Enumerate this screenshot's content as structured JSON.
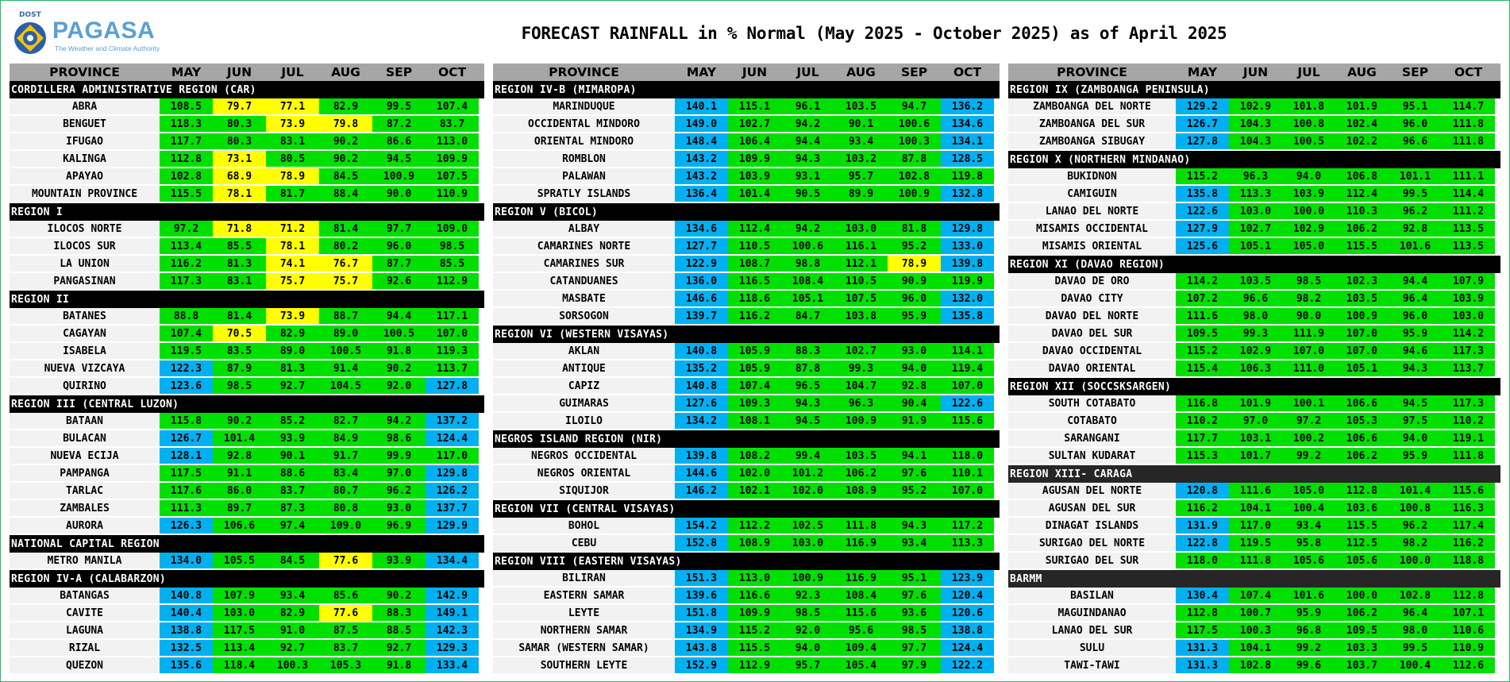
{
  "header": {
    "dost_label": "DOST",
    "logo_name": "PAGASA",
    "logo_tagline": "The Weather and Climate Authority",
    "title": "FORECAST RAINFALL in % Normal (May 2025 - October 2025) as of April 2025"
  },
  "legend_colors": {
    "below_normal": "#ffff00",
    "near_normal": "#00e000",
    "above_normal": "#00b0f0"
  },
  "columns": [
    "PROVINCE",
    "MAY",
    "JUN",
    "JUL",
    "AUG",
    "SEP",
    "OCT"
  ],
  "panels": [
    {
      "regions": [
        {
          "name": "CORDILLERA ADMINISTRATIVE REGION (CAR)",
          "rows": [
            [
              "ABRA",
              "108.5",
              "79.7",
              "77.1",
              "82.9",
              "99.5",
              "107.4"
            ],
            [
              "BENGUET",
              "118.3",
              "80.3",
              "73.9",
              "79.8",
              "87.2",
              "83.7"
            ],
            [
              "IFUGAO",
              "117.7",
              "80.3",
              "83.1",
              "90.2",
              "86.6",
              "113.0"
            ],
            [
              "KALINGA",
              "112.8",
              "73.1",
              "80.5",
              "90.2",
              "94.5",
              "109.9"
            ],
            [
              "APAYAO",
              "102.8",
              "68.9",
              "78.9",
              "84.5",
              "100.9",
              "107.5"
            ],
            [
              "MOUNTAIN PROVINCE",
              "115.5",
              "78.1",
              "81.7",
              "88.4",
              "90.0",
              "110.9"
            ]
          ]
        },
        {
          "name": "REGION I",
          "rows": [
            [
              "ILOCOS NORTE",
              "97.2",
              "71.8",
              "71.2",
              "81.4",
              "97.7",
              "109.0"
            ],
            [
              "ILOCOS SUR",
              "113.4",
              "85.5",
              "78.1",
              "80.2",
              "96.0",
              "98.5"
            ],
            [
              "LA UNION",
              "116.2",
              "81.3",
              "74.1",
              "76.7",
              "87.7",
              "85.5"
            ],
            [
              "PANGASINAN",
              "117.3",
              "83.1",
              "75.7",
              "75.7",
              "92.6",
              "112.9"
            ]
          ]
        },
        {
          "name": "REGION II",
          "rows": [
            [
              "BATANES",
              "88.8",
              "81.4",
              "73.9",
              "88.7",
              "94.4",
              "117.1"
            ],
            [
              "CAGAYAN",
              "107.4",
              "70.5",
              "82.9",
              "89.0",
              "100.5",
              "107.0"
            ],
            [
              "ISABELA",
              "119.5",
              "83.5",
              "89.0",
              "100.5",
              "91.8",
              "119.3"
            ],
            [
              "NUEVA VIZCAYA",
              "122.3",
              "87.9",
              "81.3",
              "91.4",
              "90.2",
              "113.7"
            ],
            [
              "QUIRINO",
              "123.6",
              "98.5",
              "92.7",
              "104.5",
              "92.0",
              "127.8"
            ]
          ]
        },
        {
          "name": "REGION III (CENTRAL LUZON)",
          "rows": [
            [
              "BATAAN",
              "115.8",
              "90.2",
              "85.2",
              "82.7",
              "94.2",
              "137.2"
            ],
            [
              "BULACAN",
              "126.7",
              "101.4",
              "93.9",
              "84.9",
              "98.6",
              "124.4"
            ],
            [
              "NUEVA ECIJA",
              "128.1",
              "92.8",
              "90.1",
              "91.7",
              "99.9",
              "117.0"
            ],
            [
              "PAMPANGA",
              "117.5",
              "91.1",
              "88.6",
              "83.4",
              "97.0",
              "129.8"
            ],
            [
              "TARLAC",
              "117.6",
              "86.0",
              "83.7",
              "80.7",
              "96.2",
              "126.2"
            ],
            [
              "ZAMBALES",
              "111.3",
              "89.7",
              "87.3",
              "80.8",
              "93.0",
              "137.7"
            ],
            [
              "AURORA",
              "126.3",
              "106.6",
              "97.4",
              "109.0",
              "96.9",
              "129.9"
            ]
          ]
        },
        {
          "name": "NATIONAL CAPITAL REGION",
          "rows": [
            [
              "METRO MANILA",
              "134.0",
              "105.5",
              "84.5",
              "77.6",
              "93.9",
              "134.4"
            ]
          ]
        },
        {
          "name": "REGION IV-A (CALABARZON)",
          "rows": [
            [
              "BATANGAS",
              "140.8",
              "107.9",
              "93.4",
              "85.6",
              "90.2",
              "142.9"
            ],
            [
              "CAVITE",
              "140.4",
              "103.0",
              "82.9",
              "77.6",
              "88.3",
              "149.1"
            ],
            [
              "LAGUNA",
              "138.8",
              "117.5",
              "91.0",
              "87.5",
              "88.5",
              "142.3"
            ],
            [
              "RIZAL",
              "132.5",
              "113.4",
              "92.7",
              "83.7",
              "92.7",
              "129.3"
            ],
            [
              "QUEZON",
              "135.6",
              "118.4",
              "100.3",
              "105.3",
              "91.8",
              "133.4"
            ]
          ]
        }
      ]
    },
    {
      "regions": [
        {
          "name": "REGION IV-B (MIMAROPA)",
          "rows": [
            [
              "MARINDUQUE",
              "140.1",
              "115.1",
              "96.1",
              "103.5",
              "94.7",
              "136.2"
            ],
            [
              "OCCIDENTAL MINDORO",
              "149.0",
              "102.7",
              "94.2",
              "90.1",
              "100.6",
              "134.6"
            ],
            [
              "ORIENTAL MINDORO",
              "148.4",
              "106.4",
              "94.4",
              "93.4",
              "100.3",
              "134.1"
            ],
            [
              "ROMBLON",
              "143.2",
              "109.9",
              "94.3",
              "103.2",
              "87.8",
              "128.5"
            ],
            [
              "PALAWAN",
              "143.2",
              "103.9",
              "93.1",
              "95.7",
              "102.8",
              "119.8"
            ],
            [
              "SPRATLY ISLANDS",
              "136.4",
              "101.4",
              "90.5",
              "89.9",
              "100.9",
              "132.8"
            ]
          ]
        },
        {
          "name": "REGION V (BICOL)",
          "rows": [
            [
              "ALBAY",
              "134.6",
              "112.4",
              "94.2",
              "103.0",
              "81.8",
              "129.8"
            ],
            [
              "CAMARINES NORTE",
              "127.7",
              "110.5",
              "100.6",
              "116.1",
              "95.2",
              "133.0"
            ],
            [
              "CAMARINES SUR",
              "122.9",
              "108.7",
              "98.8",
              "112.1",
              "78.9",
              "139.8"
            ],
            [
              "CATANDUANES",
              "136.0",
              "116.5",
              "108.4",
              "110.5",
              "90.9",
              "119.9"
            ],
            [
              "MASBATE",
              "146.6",
              "118.6",
              "105.1",
              "107.5",
              "96.0",
              "132.0"
            ],
            [
              "SORSOGON",
              "139.7",
              "116.2",
              "84.7",
              "103.8",
              "95.9",
              "135.8"
            ]
          ]
        },
        {
          "name": "REGION VI (WESTERN VISAYAS)",
          "rows": [
            [
              "AKLAN",
              "140.8",
              "105.9",
              "88.3",
              "102.7",
              "93.0",
              "114.1"
            ],
            [
              "ANTIQUE",
              "135.2",
              "105.9",
              "87.8",
              "99.3",
              "94.0",
              "119.4"
            ],
            [
              "CAPIZ",
              "140.8",
              "107.4",
              "96.5",
              "104.7",
              "92.8",
              "107.0"
            ],
            [
              "GUIMARAS",
              "127.6",
              "109.3",
              "94.3",
              "96.3",
              "90.4",
              "122.6"
            ],
            [
              "ILOILO",
              "134.2",
              "108.1",
              "94.5",
              "100.9",
              "91.9",
              "115.6"
            ]
          ]
        },
        {
          "name": "NEGROS ISLAND REGION (NIR)",
          "rows": [
            [
              "NEGROS OCCIDENTAL",
              "139.8",
              "108.2",
              "99.4",
              "103.5",
              "94.1",
              "118.0"
            ],
            [
              "NEGROS ORIENTAL",
              "144.6",
              "102.0",
              "101.2",
              "106.2",
              "97.6",
              "110.1"
            ],
            [
              "SIQUIJOR",
              "146.2",
              "102.1",
              "102.0",
              "108.9",
              "95.2",
              "107.0"
            ]
          ]
        },
        {
          "name": "REGION VII (CENTRAL VISAYAS)",
          "rows": [
            [
              "BOHOL",
              "154.2",
              "112.2",
              "102.5",
              "111.8",
              "94.3",
              "117.2"
            ],
            [
              "CEBU",
              "152.8",
              "108.9",
              "103.0",
              "116.9",
              "93.4",
              "113.3"
            ]
          ]
        },
        {
          "name": "REGION VIII (EASTERN  VISAYAS)",
          "rows": [
            [
              "BILIRAN",
              "151.3",
              "113.0",
              "100.9",
              "116.9",
              "95.1",
              "123.9"
            ],
            [
              "EASTERN SAMAR",
              "139.6",
              "116.6",
              "92.3",
              "108.4",
              "97.6",
              "120.4"
            ],
            [
              "LEYTE",
              "151.8",
              "109.9",
              "98.5",
              "115.6",
              "93.6",
              "120.6"
            ],
            [
              "NORTHERN SAMAR",
              "134.9",
              "115.2",
              "92.0",
              "95.6",
              "98.5",
              "138.8"
            ],
            [
              "SAMAR (WESTERN SAMAR)",
              "143.8",
              "115.5",
              "94.0",
              "109.4",
              "97.7",
              "124.4"
            ],
            [
              "SOUTHERN LEYTE",
              "152.9",
              "112.9",
              "95.7",
              "105.4",
              "97.9",
              "122.2"
            ]
          ]
        }
      ]
    },
    {
      "regions": [
        {
          "name": "REGION IX (ZAMBOANGA PENINSULA)",
          "rows": [
            [
              "ZAMBOANGA DEL NORTE",
              "129.2",
              "102.9",
              "101.8",
              "101.9",
              "95.1",
              "114.7"
            ],
            [
              "ZAMBOANGA DEL SUR",
              "126.7",
              "104.3",
              "100.8",
              "102.4",
              "96.0",
              "111.8"
            ],
            [
              "ZAMBOANGA SIBUGAY",
              "127.8",
              "104.3",
              "100.5",
              "102.2",
              "96.6",
              "111.8"
            ]
          ]
        },
        {
          "name": "REGION X (NORTHERN MINDANAO)",
          "rows": [
            [
              "BUKIDNON",
              "115.2",
              "96.3",
              "94.0",
              "106.8",
              "101.1",
              "111.1"
            ],
            [
              "CAMIGUIN",
              "135.8",
              "113.3",
              "103.9",
              "112.4",
              "99.5",
              "114.4"
            ],
            [
              "LANAO DEL NORTE",
              "122.6",
              "103.0",
              "100.0",
              "110.3",
              "96.2",
              "111.2"
            ],
            [
              "MISAMIS OCCIDENTAL",
              "127.9",
              "102.7",
              "102.9",
              "106.2",
              "92.8",
              "113.5"
            ],
            [
              "MISAMIS ORIENTAL",
              "125.6",
              "105.1",
              "105.0",
              "115.5",
              "101.6",
              "113.5"
            ]
          ]
        },
        {
          "name": "REGION XI (DAVAO REGION)",
          "rows": [
            [
              "DAVAO DE ORO",
              "114.2",
              "103.5",
              "98.5",
              "102.3",
              "94.4",
              "107.9"
            ],
            [
              "DAVAO CITY",
              "107.2",
              "96.6",
              "98.2",
              "103.5",
              "96.4",
              "103.9"
            ],
            [
              "DAVAO DEL NORTE",
              "111.6",
              "98.0",
              "90.0",
              "100.9",
              "96.0",
              "103.0"
            ],
            [
              "DAVAO DEL SUR",
              "109.5",
              "99.3",
              "111.9",
              "107.0",
              "95.9",
              "114.2"
            ],
            [
              "DAVAO OCCIDENTAL",
              "115.2",
              "102.9",
              "107.0",
              "107.0",
              "94.6",
              "117.3"
            ],
            [
              "DAVAO ORIENTAL",
              "115.4",
              "106.3",
              "111.0",
              "105.1",
              "94.3",
              "113.7"
            ]
          ]
        },
        {
          "name": "REGION XII (SOCCSKSARGEN)",
          "rows": [
            [
              "SOUTH COTABATO",
              "116.8",
              "101.9",
              "100.1",
              "106.6",
              "94.5",
              "117.3"
            ],
            [
              "COTABATO",
              "110.2",
              "97.0",
              "97.2",
              "105.3",
              "97.5",
              "110.2"
            ],
            [
              "SARANGANI",
              "117.7",
              "103.1",
              "100.2",
              "106.6",
              "94.0",
              "119.1"
            ],
            [
              "SULTAN KUDARAT",
              "115.3",
              "101.7",
              "99.2",
              "106.2",
              "95.9",
              "111.8"
            ]
          ]
        },
        {
          "name": "REGION XIII- CARAGA",
          "rows": [
            [
              "AGUSAN DEL NORTE",
              "120.8",
              "111.6",
              "105.0",
              "112.8",
              "101.4",
              "115.6"
            ],
            [
              "AGUSAN DEL SUR",
              "116.2",
              "104.1",
              "100.4",
              "103.6",
              "100.8",
              "116.3"
            ],
            [
              "DINAGAT ISLANDS",
              "131.9",
              "117.0",
              "93.4",
              "115.5",
              "96.2",
              "117.4"
            ],
            [
              "SURIGAO DEL NORTE",
              "122.8",
              "119.5",
              "95.8",
              "112.5",
              "98.2",
              "116.2"
            ],
            [
              "SURIGAO DEL SUR",
              "118.0",
              "111.8",
              "105.6",
              "105.6",
              "100.0",
              "118.8"
            ]
          ]
        },
        {
          "name": "BARMM",
          "rows": [
            [
              "BASILAN",
              "130.4",
              "107.4",
              "101.6",
              "100.0",
              "102.8",
              "112.8"
            ],
            [
              "MAGUINDANAO",
              "112.8",
              "100.7",
              "95.9",
              "106.2",
              "96.4",
              "107.1"
            ],
            [
              "LANAO DEL SUR",
              "117.5",
              "100.3",
              "96.8",
              "109.5",
              "98.0",
              "110.6"
            ],
            [
              "SULU",
              "131.3",
              "104.1",
              "99.2",
              "103.3",
              "99.5",
              "110.9"
            ],
            [
              "TAWI-TAWI",
              "131.3",
              "102.8",
              "99.6",
              "103.7",
              "100.4",
              "112.6"
            ]
          ]
        }
      ]
    }
  ]
}
